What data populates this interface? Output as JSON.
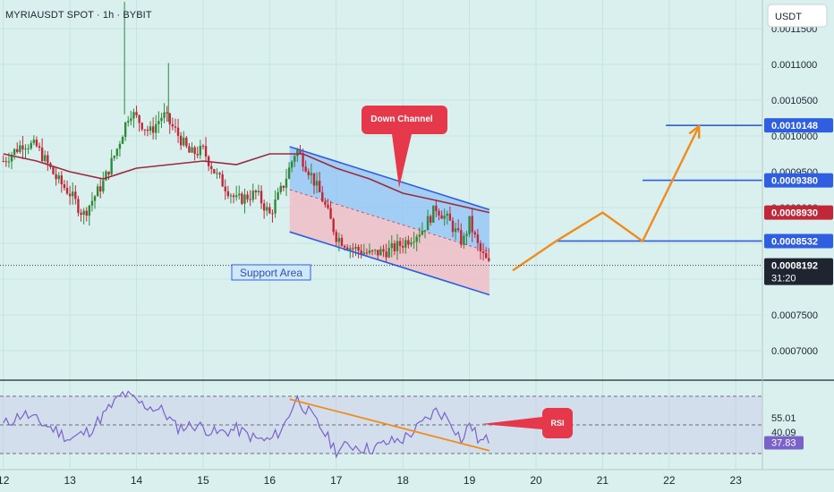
{
  "header": {
    "title": "MYRIAUSDT SPOT · 1h · BYBIT",
    "currency": "USDT"
  },
  "annotations": {
    "down_channel": "Down Channel",
    "support_area": "Support Area",
    "rsi": "RSI"
  },
  "colors": {
    "background": "#d9f0ee",
    "candle_up": "#2f8a38",
    "candle_down": "#c0283a",
    "moving_average": "#9b2a3e",
    "channel_line": "#2f5ee0",
    "projection": "#f08c1e",
    "callout": "#e5384a",
    "rsi_line": "#7a62c9"
  },
  "chart_data": [
    {
      "type": "candlestick",
      "pair": "MYRIAUSDT",
      "timeframe": "1h",
      "x_ticks": [
        "12",
        "13",
        "14",
        "15",
        "16",
        "17",
        "18",
        "19",
        "20",
        "21",
        "22",
        "23"
      ],
      "y_ticks": [
        "0.0011500",
        "0.0011000",
        "0.0010500",
        "0.0010000",
        "0.0009500",
        "0.0009000",
        "0.0008500",
        "0.0008000",
        "0.0007500",
        "0.0007000"
      ],
      "y_range": [
        0.00066,
        0.00119
      ],
      "x_range": [
        11.95,
        23.4
      ],
      "price_labels": [
        {
          "value": "0.0010148",
          "level": 0.0010148,
          "kind": "target"
        },
        {
          "value": "0.0009380",
          "level": 0.000938,
          "kind": "target"
        },
        {
          "value": "0.0008930",
          "level": 0.000893,
          "kind": "ma"
        },
        {
          "value": "0.0008532",
          "level": 0.0008532,
          "kind": "target"
        },
        {
          "value": "0.0008192",
          "level": 0.0008192,
          "kind": "last"
        }
      ],
      "countdown": "31:20",
      "series": [
        {
          "name": "price",
          "points": [
            [
              12.0,
              0.000965
            ],
            [
              12.3,
              0.00099
            ],
            [
              12.5,
              0.000985
            ],
            [
              12.8,
              0.00094
            ],
            [
              13.0,
              0.00092
            ],
            [
              13.2,
              0.00089
            ],
            [
              13.5,
              0.000935
            ],
            [
              13.7,
              0.00098
            ],
            [
              13.9,
              0.001035
            ],
            [
              14.2,
              0.001005
            ],
            [
              14.4,
              0.00103
            ],
            [
              14.6,
              0.001005
            ],
            [
              14.8,
              0.000975
            ],
            [
              15.0,
              0.00098
            ],
            [
              15.2,
              0.000945
            ],
            [
              15.5,
              0.00091
            ],
            [
              15.8,
              0.00092
            ],
            [
              16.0,
              0.00089
            ],
            [
              16.2,
              0.00093
            ],
            [
              16.4,
              0.000982
            ],
            [
              16.6,
              0.00095
            ],
            [
              16.8,
              0.00091
            ],
            [
              17.0,
              0.00086
            ],
            [
              17.2,
              0.000845
            ],
            [
              17.5,
              0.000835
            ],
            [
              17.8,
              0.00084
            ],
            [
              18.0,
              0.00085
            ],
            [
              18.3,
              0.00087
            ],
            [
              18.5,
              0.0009
            ],
            [
              18.7,
              0.00088
            ],
            [
              18.9,
              0.00085
            ],
            [
              19.0,
              0.00088
            ],
            [
              19.15,
              0.00084
            ],
            [
              19.3,
              0.000819
            ]
          ]
        },
        {
          "name": "moving_average",
          "points": [
            [
              12.0,
              0.000975
            ],
            [
              12.5,
              0.000965
            ],
            [
              13.0,
              0.00095
            ],
            [
              13.5,
              0.00094
            ],
            [
              14.0,
              0.000955
            ],
            [
              14.5,
              0.00096
            ],
            [
              15.0,
              0.000965
            ],
            [
              15.5,
              0.00096
            ],
            [
              16.0,
              0.000975
            ],
            [
              16.5,
              0.000975
            ],
            [
              17.0,
              0.000955
            ],
            [
              17.5,
              0.00094
            ],
            [
              18.0,
              0.00092
            ],
            [
              18.5,
              0.00091
            ],
            [
              19.3,
              0.000893
            ]
          ]
        }
      ],
      "channel": {
        "upper": [
          [
            16.3,
            0.000985
          ],
          [
            19.3,
            0.000897
          ]
        ],
        "middle": [
          [
            16.3,
            0.000925
          ],
          [
            19.3,
            0.000838
          ]
        ],
        "lower": [
          [
            16.3,
            0.000866
          ],
          [
            19.3,
            0.000778
          ]
        ]
      },
      "projection_path": [
        [
          19.65,
          0.000812
        ],
        [
          20.3,
          0.000853
        ],
        [
          21.0,
          0.000893
        ],
        [
          21.6,
          0.000853
        ],
        [
          22.45,
          0.001014
        ]
      ],
      "horizontal_levels": [
        {
          "from": 20.3,
          "value": 0.0008532
        },
        {
          "from": 21.6,
          "value": 0.000938
        },
        {
          "from": 21.95,
          "value": 0.0010148
        }
      ]
    },
    {
      "type": "line",
      "indicator": "RSI",
      "y_range": [
        20,
        80
      ],
      "levels": [
        70,
        50,
        30
      ],
      "value_labels": [
        "55.01",
        "40.09",
        "37.83"
      ],
      "series": [
        {
          "name": "RSI",
          "points": [
            [
              12.0,
              50
            ],
            [
              12.3,
              58
            ],
            [
              12.5,
              53
            ],
            [
              12.8,
              46
            ],
            [
              13.0,
              40
            ],
            [
              13.3,
              46
            ],
            [
              13.6,
              62
            ],
            [
              13.8,
              72
            ],
            [
              14.1,
              64
            ],
            [
              14.4,
              60
            ],
            [
              14.6,
              48
            ],
            [
              14.9,
              50
            ],
            [
              15.2,
              44
            ],
            [
              15.5,
              47
            ],
            [
              15.8,
              40
            ],
            [
              16.0,
              39
            ],
            [
              16.2,
              48
            ],
            [
              16.4,
              69
            ],
            [
              16.6,
              58
            ],
            [
              16.8,
              46
            ],
            [
              17.0,
              32
            ],
            [
              17.2,
              36
            ],
            [
              17.5,
              33
            ],
            [
              17.8,
              38
            ],
            [
              18.0,
              40
            ],
            [
              18.2,
              47
            ],
            [
              18.5,
              60
            ],
            [
              18.7,
              54
            ],
            [
              18.9,
              38
            ],
            [
              19.0,
              52
            ],
            [
              19.15,
              38
            ],
            [
              19.3,
              40
            ]
          ]
        }
      ],
      "trend_line": [
        [
          16.3,
          68
        ],
        [
          19.3,
          32
        ]
      ]
    }
  ]
}
